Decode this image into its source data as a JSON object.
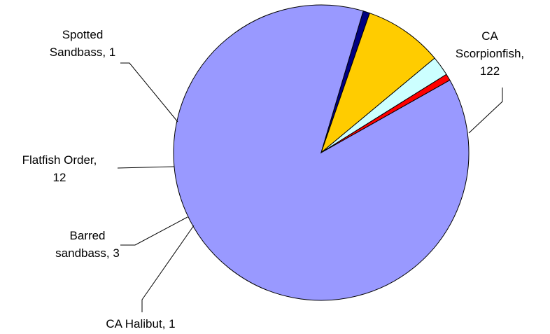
{
  "chart_data": {
    "type": "pie",
    "title": "",
    "slices": [
      {
        "label": "CA Scorpionfish",
        "value": 122,
        "color": "#9999ff",
        "label_lines": [
          "CA",
          "Scorpionfish,",
          "122"
        ]
      },
      {
        "label": "Spotted Sandbass",
        "value": 1,
        "color": "#000080",
        "label_lines": [
          "Spotted",
          "Sandbass, 1"
        ]
      },
      {
        "label": "Flatfish Order",
        "value": 12,
        "color": "#ffcc00",
        "label_lines": [
          "Flatfish Order,",
          "12"
        ]
      },
      {
        "label": "Barred sandbass",
        "value": 3,
        "color": "#ccffff",
        "label_lines": [
          "Barred",
          "sandbass, 3"
        ]
      },
      {
        "label": "CA Halibut",
        "value": 1,
        "color": "#ff0000",
        "label_lines": [
          "CA Halibut, 1"
        ]
      }
    ]
  }
}
